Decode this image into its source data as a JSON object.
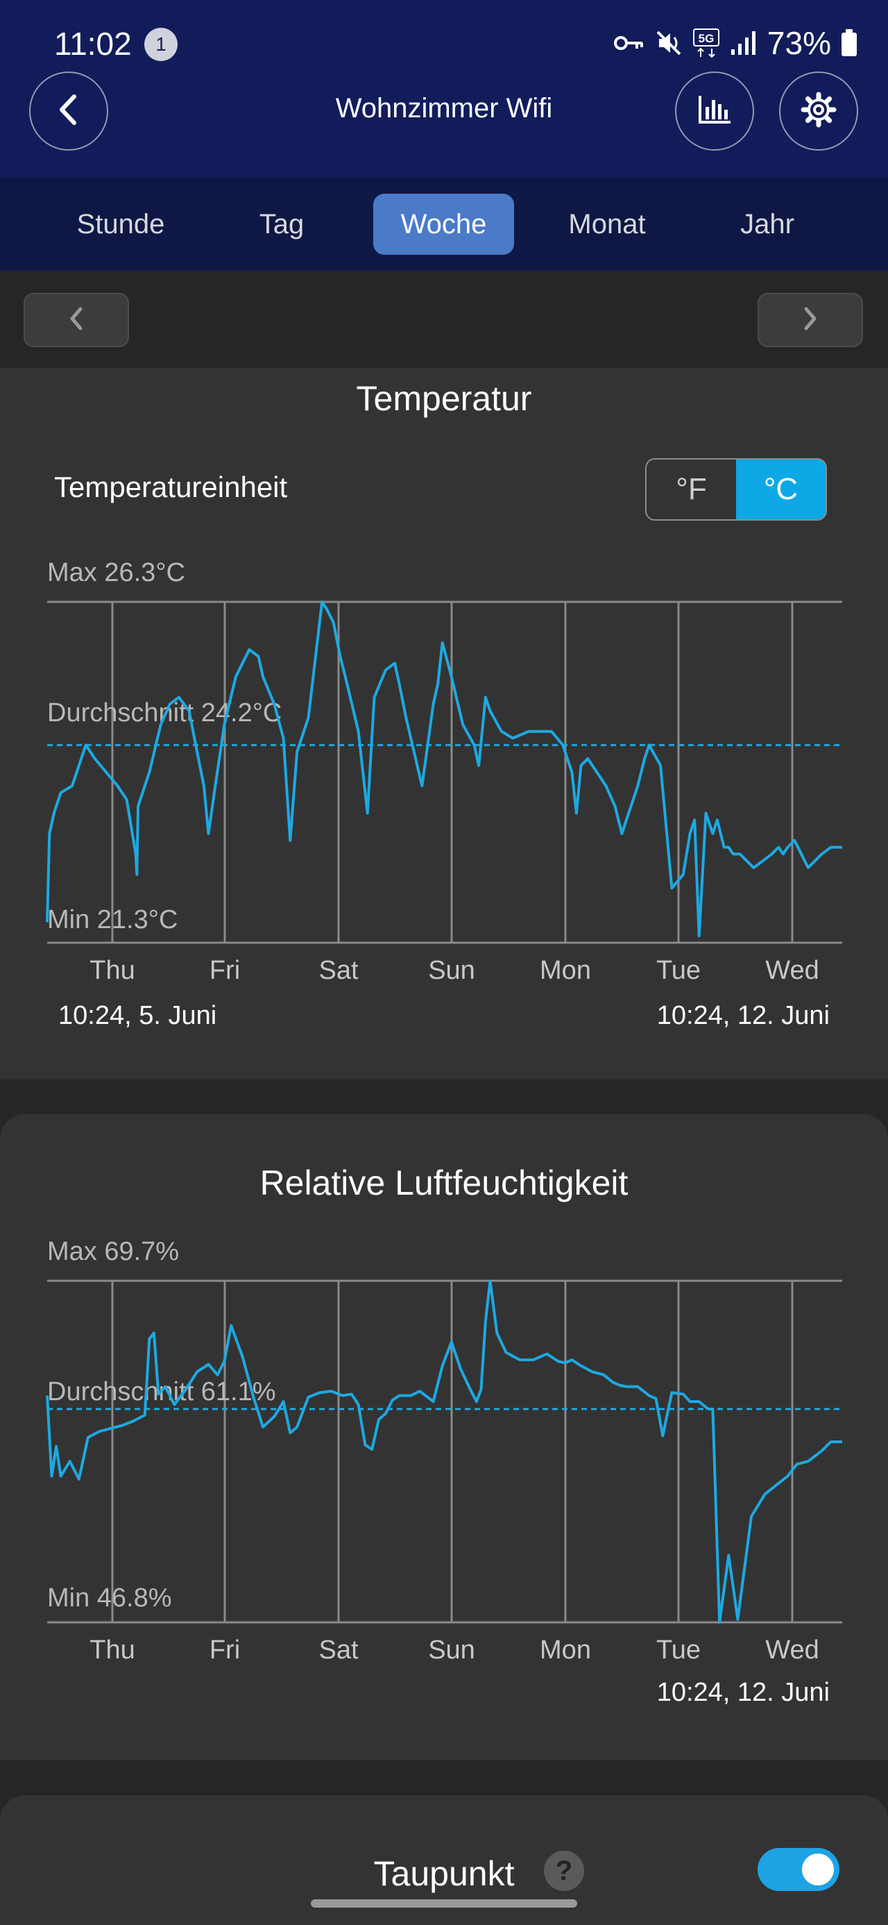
{
  "status_bar": {
    "time": "11:02",
    "notification_count": "1",
    "network": "5G",
    "battery": "73%"
  },
  "header": {
    "title": "Wohnzimmer Wifi"
  },
  "period_tabs": [
    {
      "label": "Stunde",
      "active": false
    },
    {
      "label": "Tag",
      "active": false
    },
    {
      "label": "Woche",
      "active": true
    },
    {
      "label": "Monat",
      "active": false
    },
    {
      "label": "Jahr",
      "active": false
    }
  ],
  "temperature_card": {
    "title": "Temperatur",
    "unit_label": "Temperatureinheit",
    "unit_options": [
      "°F",
      "°C"
    ],
    "unit_selected": "°C",
    "range_start": "10:24,  5. Juni",
    "range_end": "10:24,  12. Juni"
  },
  "humidity_card": {
    "title": "Relative Luftfeuchtigkeit",
    "range_end": "10:24,  12. Juni"
  },
  "dewpoint_card": {
    "title": "Taupunkt",
    "help_glyph": "?",
    "enabled": true
  },
  "colors": {
    "header_bg": "#121c5a",
    "tab_active": "#4a7ac8",
    "accent": "#0fa8e6",
    "series_line": "#1da9e2"
  },
  "chart_data": [
    {
      "type": "line",
      "title": "Temperatur",
      "categories": [
        "Thu",
        "Fri",
        "Sat",
        "Sun",
        "Mon",
        "Tue",
        "Wed"
      ],
      "max_label": "Max 26.3°C",
      "avg_label": "Durchschnitt 24.2°C",
      "min_label": "Min 21.3°C",
      "ylim": [
        21.3,
        26.3
      ],
      "average": 24.2,
      "x_days": [
        0,
        7
      ],
      "series": [
        {
          "x": [
            0,
            0.02,
            0.06,
            0.12,
            0.22,
            0.34,
            0.42,
            0.52,
            0.62,
            0.7,
            0.78,
            0.79,
            0.8,
            0.9,
            1.0,
            1.08,
            1.16,
            1.25,
            1.32,
            1.38,
            1.42,
            1.48,
            1.56,
            1.66,
            1.78,
            1.86,
            1.9,
            2.0,
            2.08,
            2.14,
            2.2,
            2.3,
            2.42,
            2.46,
            2.52,
            2.58,
            2.64,
            2.74,
            2.82,
            2.88,
            2.98,
            3.06,
            3.1,
            3.16,
            3.3,
            3.4,
            3.44,
            3.48,
            3.56,
            3.66,
            3.76,
            3.8,
            3.86,
            3.9,
            4.0,
            4.1,
            4.24,
            4.34,
            4.44,
            4.54,
            4.62,
            4.66,
            4.7,
            4.76,
            4.84,
            4.92,
            5.0,
            5.06,
            5.12,
            5.2,
            5.26,
            5.3,
            5.4,
            5.5,
            5.6,
            5.66,
            5.7,
            5.74,
            5.8,
            5.86,
            5.9,
            5.96,
            6.0,
            6.04,
            6.1,
            6.16,
            6.22,
            6.3,
            6.38,
            6.44,
            6.48,
            6.52,
            6.58,
            6.64,
            6.7,
            6.76,
            6.82,
            6.9,
            6.98,
            7.0
          ],
          "y": [
            21.6,
            22.9,
            23.2,
            23.5,
            23.6,
            24.2,
            24.0,
            23.8,
            23.6,
            23.4,
            22.6,
            22.3,
            23.3,
            23.8,
            24.5,
            24.8,
            24.9,
            24.7,
            24.1,
            23.6,
            22.9,
            23.6,
            24.5,
            25.2,
            25.6,
            25.5,
            25.2,
            24.8,
            24.3,
            22.8,
            24.1,
            24.6,
            26.3,
            26.2,
            26.0,
            25.5,
            25.1,
            24.4,
            23.2,
            24.9,
            25.3,
            25.4,
            25.1,
            24.6,
            23.6,
            24.8,
            25.1,
            25.7,
            25.2,
            24.5,
            24.2,
            23.9,
            24.9,
            24.7,
            24.4,
            24.3,
            24.4,
            24.4,
            24.4,
            24.2,
            23.8,
            23.2,
            23.9,
            24.0,
            23.8,
            23.6,
            23.3,
            22.9,
            23.2,
            23.6,
            24.0,
            24.2,
            23.9,
            22.1,
            22.3,
            22.9,
            23.1,
            21.4,
            23.2,
            22.9,
            23.1,
            22.7,
            22.7,
            22.6,
            22.6,
            22.5,
            22.4,
            22.5,
            22.6,
            22.7,
            22.6,
            22.7,
            22.8,
            22.6,
            22.4,
            22.5,
            22.6,
            22.7,
            22.7,
            22.7
          ]
        }
      ]
    },
    {
      "type": "line",
      "title": "Relative Luftfeuchtigkeit",
      "categories": [
        "Thu",
        "Fri",
        "Sat",
        "Sun",
        "Mon",
        "Tue",
        "Wed"
      ],
      "max_label": "Max 69.7%",
      "avg_label": "Durchschnitt 61.1%",
      "min_label": "Min 46.8%",
      "ylim": [
        46.8,
        69.7
      ],
      "average": 61.1,
      "x_days": [
        0,
        7
      ],
      "series": [
        {
          "x": [
            0,
            0.04,
            0.08,
            0.12,
            0.2,
            0.28,
            0.36,
            0.46,
            0.56,
            0.66,
            0.76,
            0.86,
            0.9,
            0.94,
            0.98,
            1.04,
            1.12,
            1.22,
            1.32,
            1.42,
            1.5,
            1.56,
            1.62,
            1.72,
            1.82,
            1.9,
            2.0,
            2.08,
            2.14,
            2.2,
            2.3,
            2.4,
            2.5,
            2.6,
            2.68,
            2.74,
            2.8,
            2.86,
            2.92,
            2.98,
            3.04,
            3.1,
            3.2,
            3.28,
            3.4,
            3.48,
            3.56,
            3.64,
            3.72,
            3.78,
            3.82,
            3.86,
            3.9,
            3.96,
            4.04,
            4.16,
            4.28,
            4.4,
            4.5,
            4.56,
            4.62,
            4.7,
            4.8,
            4.9,
            4.98,
            5.04,
            5.1,
            5.2,
            5.3,
            5.36,
            5.42,
            5.5,
            5.6,
            5.66,
            5.74,
            5.82,
            5.86,
            5.92,
            6.0,
            6.08,
            6.2,
            6.32,
            6.42,
            6.52,
            6.6,
            6.7,
            6.82,
            6.9,
            6.98,
            7.0
          ],
          "y": [
            62.0,
            56.6,
            58.6,
            56.6,
            57.6,
            56.4,
            59.2,
            59.6,
            59.8,
            60.0,
            60.3,
            60.7,
            65.8,
            66.2,
            62.1,
            62.6,
            61.4,
            62.4,
            63.6,
            64.1,
            63.4,
            64.3,
            66.7,
            64.6,
            61.8,
            59.9,
            60.6,
            61.6,
            59.5,
            59.9,
            61.9,
            62.2,
            62.3,
            62.0,
            62.1,
            61.4,
            58.7,
            58.4,
            60.4,
            60.8,
            61.7,
            62.0,
            62.0,
            62.3,
            61.6,
            64.0,
            65.6,
            63.8,
            62.5,
            61.6,
            62.4,
            67.0,
            69.7,
            66.2,
            64.9,
            64.4,
            64.4,
            64.8,
            64.3,
            64.2,
            64.4,
            64.0,
            63.6,
            63.4,
            62.9,
            62.7,
            62.6,
            62.6,
            62.0,
            61.8,
            59.3,
            62.2,
            62.1,
            61.6,
            61.6,
            61.1,
            61.1,
            46.8,
            51.3,
            47.0,
            53.9,
            55.4,
            56.0,
            56.6,
            57.4,
            57.6,
            58.3,
            58.9,
            58.9,
            58.9
          ]
        }
      ]
    }
  ]
}
